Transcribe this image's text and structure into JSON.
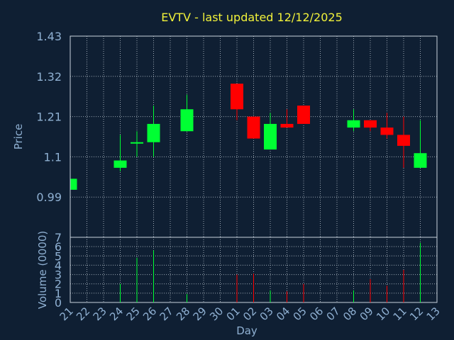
{
  "title": "EVTV - last updated 12/12/2025",
  "colors": {
    "background": "#0f1f33",
    "up": "#00ff33",
    "down": "#ff0000",
    "text": "#8fb0d2",
    "title": "#f2f23a"
  },
  "chart_data": [
    {
      "type": "candlestick",
      "ylabel": "Price",
      "ylim": [
        0.88,
        1.43
      ],
      "yticks": [
        "0.99",
        "1.1",
        "1.21",
        "1.32",
        "1.43"
      ],
      "grid": true,
      "candles": [
        {
          "day": "21",
          "open": 1.01,
          "high": 1.04,
          "low": 1.01,
          "close": 1.04
        },
        {
          "day": "24",
          "open": 1.07,
          "high": 1.16,
          "low": 1.06,
          "close": 1.09
        },
        {
          "day": "25",
          "open": 1.14,
          "high": 1.17,
          "low": 1.1,
          "close": 1.14
        },
        {
          "day": "26",
          "open": 1.14,
          "high": 1.24,
          "low": 1.1,
          "close": 1.19
        },
        {
          "day": "28",
          "open": 1.17,
          "high": 1.27,
          "low": 1.17,
          "close": 1.23
        },
        {
          "day": "01",
          "open": 1.3,
          "high": 1.3,
          "low": 1.2,
          "close": 1.23
        },
        {
          "day": "02",
          "open": 1.21,
          "high": 1.21,
          "low": 1.15,
          "close": 1.15
        },
        {
          "day": "03",
          "open": 1.12,
          "high": 1.22,
          "low": 1.12,
          "close": 1.19
        },
        {
          "day": "04",
          "open": 1.19,
          "high": 1.23,
          "low": 1.18,
          "close": 1.18
        },
        {
          "day": "05",
          "open": 1.24,
          "high": 1.24,
          "low": 1.19,
          "close": 1.19
        },
        {
          "day": "08",
          "open": 1.18,
          "high": 1.23,
          "low": 1.17,
          "close": 1.2
        },
        {
          "day": "09",
          "open": 1.2,
          "high": 1.2,
          "low": 1.17,
          "close": 1.18
        },
        {
          "day": "10",
          "open": 1.18,
          "high": 1.22,
          "low": 1.15,
          "close": 1.16
        },
        {
          "day": "11",
          "open": 1.16,
          "high": 1.21,
          "low": 1.07,
          "close": 1.13
        },
        {
          "day": "12",
          "open": 1.07,
          "high": 1.2,
          "low": 1.07,
          "close": 1.11
        }
      ]
    },
    {
      "type": "bar",
      "ylabel": "Volume (0000)",
      "xlabel": "Day",
      "ylim": [
        0,
        7
      ],
      "yticks": [
        "0",
        "1",
        "2",
        "3",
        "4",
        "5",
        "6",
        "7"
      ],
      "grid": true,
      "categories": [
        "21",
        "22",
        "23",
        "24",
        "25",
        "26",
        "27",
        "28",
        "29",
        "30",
        "01",
        "02",
        "03",
        "04",
        "05",
        "06",
        "07",
        "08",
        "09",
        "10",
        "11",
        "12",
        "13"
      ],
      "values": [
        0,
        0,
        0,
        2.0,
        4.8,
        5.6,
        0,
        0.9,
        0,
        0,
        3.0,
        3.1,
        1.3,
        1.2,
        2.0,
        0,
        0,
        1.3,
        2.5,
        1.8,
        3.5,
        6.4,
        0
      ],
      "bar_colors": [
        "#00ff33",
        "#00ff33",
        "#00ff33",
        "#00ff33",
        "#00ff33",
        "#00ff33",
        "#00ff33",
        "#00ff33",
        "#00ff33",
        "#00ff33",
        "#ff0000",
        "#ff0000",
        "#00ff33",
        "#ff0000",
        "#ff0000",
        "#00ff33",
        "#00ff33",
        "#00ff33",
        "#ff0000",
        "#ff0000",
        "#ff0000",
        "#00ff33",
        "#00ff33"
      ]
    }
  ]
}
